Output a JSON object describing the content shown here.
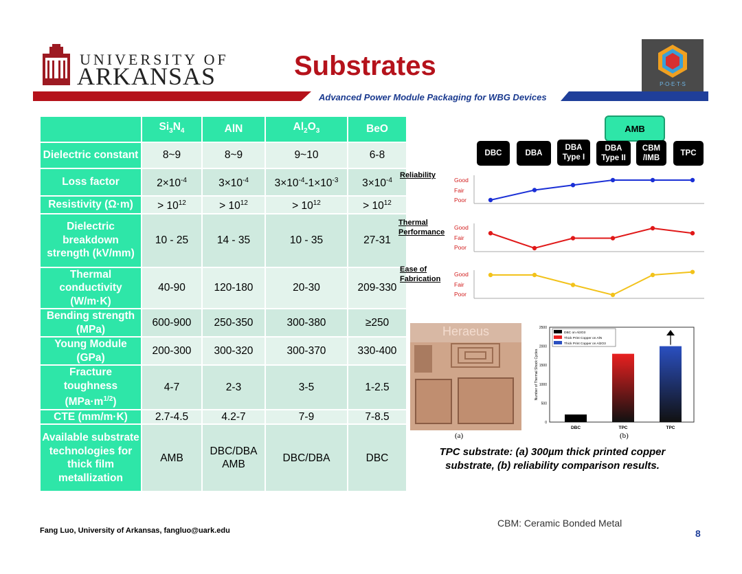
{
  "header": {
    "university_top": "UNIVERSITY OF",
    "university_main": "ARKANSAS",
    "title": "Substrates",
    "subtitle": "Advanced Power Module Packaging for WBG Devices",
    "poets_logo_text": "P·O·E·T·S"
  },
  "table": {
    "columns": [
      "Si3N4",
      "AlN",
      "Al2O3",
      "BeO"
    ],
    "rows": [
      {
        "label": "Dielectric constant",
        "values": [
          "8~9",
          "8~9",
          "9~10",
          "6-8"
        ]
      },
      {
        "label": "Loss factor",
        "values": [
          "2×10-4",
          "3×10-4",
          "3×10-4-1×10-3",
          "3×10-4"
        ]
      },
      {
        "label": "Resistivity (Ω·m)",
        "values": [
          "> 1012",
          "> 1012",
          "> 1012",
          "> 1012"
        ]
      },
      {
        "label": "Dielectric breakdown strength (kV/mm)",
        "values": [
          "10 - 25",
          "14 - 35",
          "10 - 35",
          "27-31"
        ]
      },
      {
        "label": "Thermal conductivity (W/m·K)",
        "values": [
          "40-90",
          "120-180",
          "20-30",
          "209-330"
        ]
      },
      {
        "label": "Bending strength (MPa)",
        "values": [
          "600-900",
          "250-350",
          "300-380",
          "≥250"
        ]
      },
      {
        "label": "Young Module (GPa)",
        "values": [
          "200-300",
          "300-320",
          "300-370",
          "330-400"
        ]
      },
      {
        "label": "Fracture toughness (MPa·m1/2)",
        "values": [
          "4-7",
          "2-3",
          "3-5",
          "1-2.5"
        ]
      },
      {
        "label": "CTE (mm/m·K)",
        "values": [
          "2.7-4.5",
          "4.2-7",
          "7-9",
          "7-8.5"
        ]
      },
      {
        "label": "Available substrate technologies for thick film metallization",
        "values": [
          "AMB",
          "DBC/DBA AMB",
          "DBC/DBA",
          "DBC"
        ]
      }
    ]
  },
  "technologies": {
    "amb_label": "AMB",
    "items": [
      "DBC",
      "DBA",
      "DBA Type I",
      "DBA Type II",
      "CBM /IMB",
      "TPC"
    ]
  },
  "comparison": {
    "levels": [
      "Good",
      "Fair",
      "Poor"
    ],
    "rows": [
      {
        "label": "Reliability",
        "color": "#1a2fd6",
        "levels": [
          0,
          1,
          1.5,
          2,
          2,
          2
        ]
      },
      {
        "label": "Thermal Performance",
        "color": "#e01818",
        "levels": [
          1.5,
          0,
          1,
          1,
          2,
          1.5
        ]
      },
      {
        "label": "Ease of Fabrication",
        "color": "#f2c21a",
        "levels": [
          2,
          2,
          1,
          0,
          2,
          2.3
        ]
      }
    ]
  },
  "figure": {
    "photo_brand": "Heraeus",
    "caption_a": "(a)",
    "caption_b": "(b)",
    "caption": "TPC substrate: (a) 300µm thick printed copper substrate, (b) reliability comparison results."
  },
  "chart_data": {
    "type": "bar",
    "categories": [
      "DBC",
      "TPC",
      "TPC"
    ],
    "series": [
      {
        "name": "DBC on Al2O3",
        "values": [
          200,
          null,
          null
        ]
      },
      {
        "name": "Thick Print Copper on AlN",
        "values": [
          null,
          1800,
          null
        ]
      },
      {
        "name": "Thick Print Copper on Al2O3",
        "values": [
          null,
          null,
          2000
        ]
      }
    ],
    "ylabel": "Number of Thermal Shock Cycles",
    "ylim": [
      0,
      2500
    ],
    "yticks": [
      "0",
      "500",
      "1000",
      "1500",
      "2000",
      "2500"
    ],
    "legend": "top-left",
    "colors": [
      "#000000",
      "#e82020",
      "#2a4fc0"
    ]
  },
  "notes": {
    "cbm": "CBM: Ceramic Bonded Metal",
    "footer": "Fang Luo, University of Arkansas, fangluo@uark.edu",
    "page": "8"
  }
}
